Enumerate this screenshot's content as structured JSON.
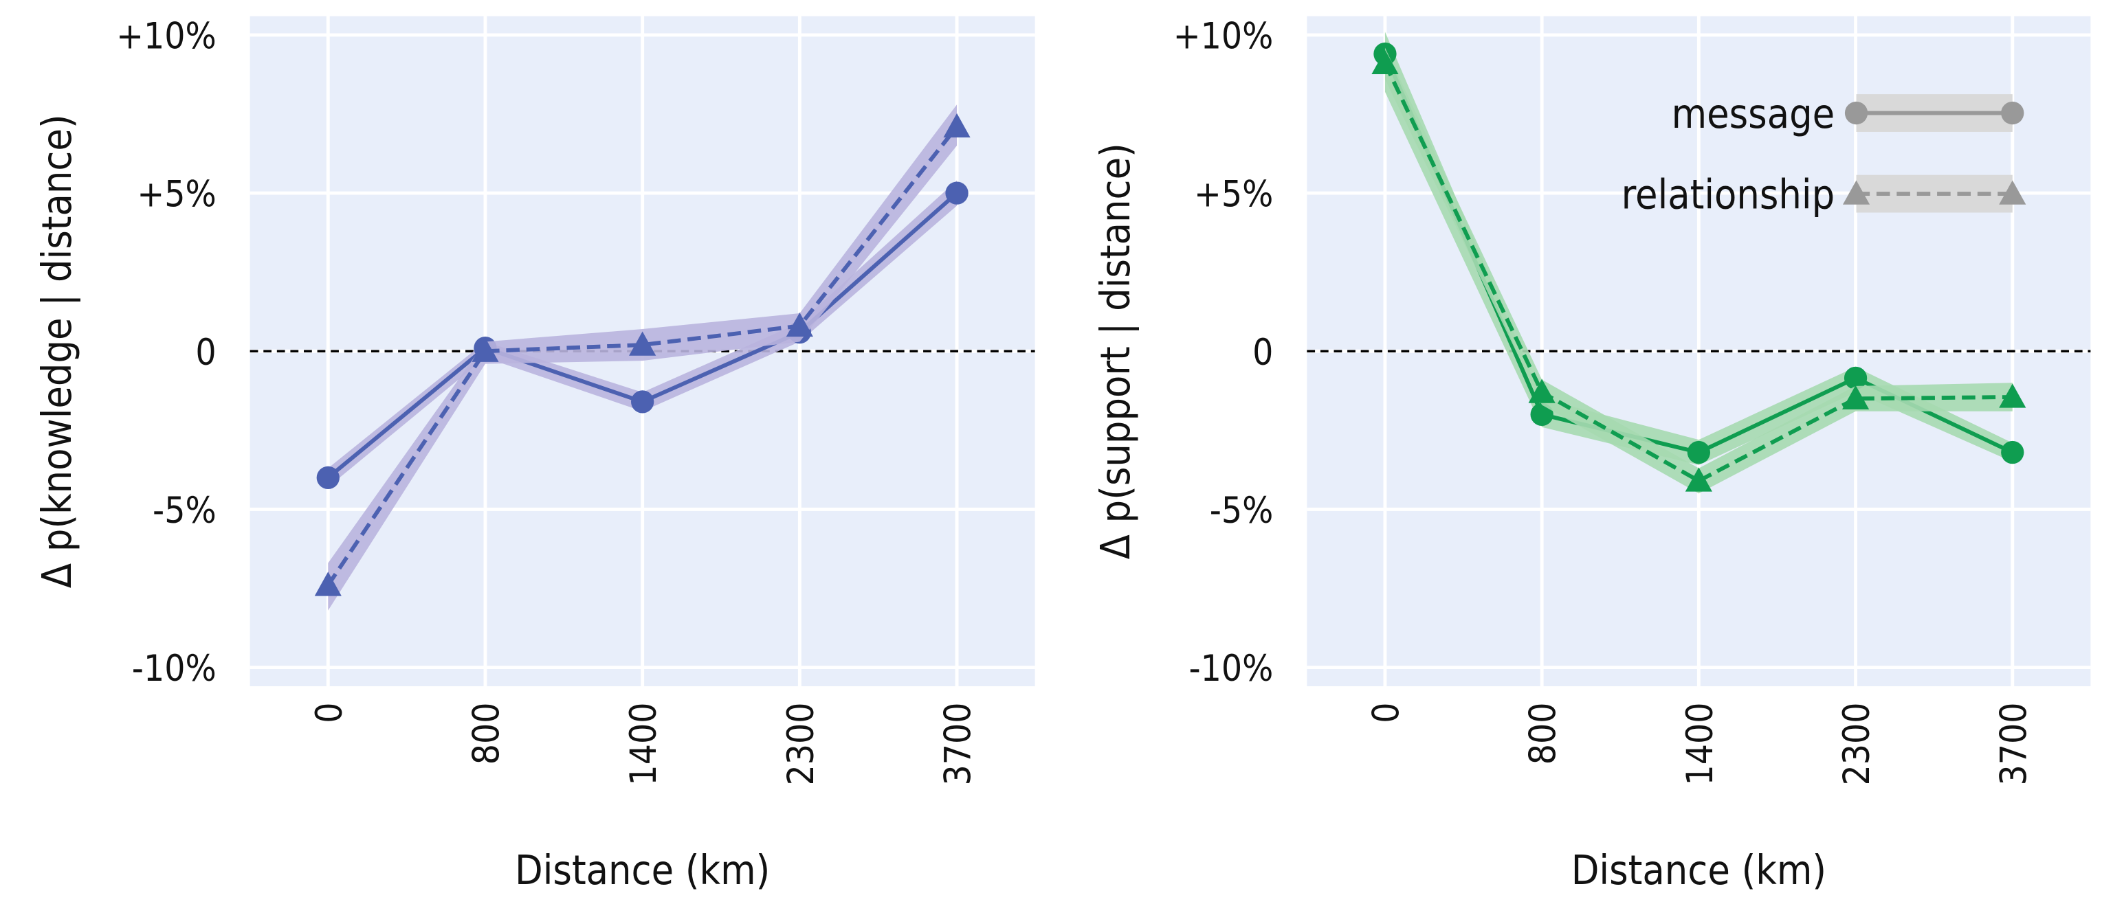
{
  "chart_data": [
    {
      "type": "line",
      "ylabel": "Δ p(knowledge | distance)",
      "xlabel": "Distance (km)",
      "categories": [
        "0",
        "800",
        "1400",
        "2300",
        "3700"
      ],
      "ylim": [
        -11,
        10.5
      ],
      "yticks": [
        10,
        5,
        0,
        -5,
        -10
      ],
      "ytick_labels": [
        "+10%",
        "+5%",
        "0",
        "-5%",
        "-10%"
      ],
      "reference_line": 0,
      "grid": true,
      "line_color": "#4c61b1",
      "band_color": "#b9b4de",
      "series": [
        {
          "name": "message",
          "marker": "circle",
          "style": "solid",
          "values": [
            -4.0,
            0.1,
            -1.6,
            0.6,
            5.0
          ],
          "ci_low": [
            -4.3,
            -0.2,
            -1.9,
            0.3,
            4.6
          ],
          "ci_high": [
            -3.7,
            0.3,
            -1.3,
            0.9,
            5.4
          ]
        },
        {
          "name": "relationship",
          "marker": "triangle",
          "style": "dashed",
          "values": [
            -7.4,
            0.0,
            0.2,
            0.8,
            7.1
          ],
          "ci_low": [
            -8.2,
            -0.4,
            -0.3,
            0.3,
            6.5
          ],
          "ci_high": [
            -6.7,
            0.3,
            0.7,
            1.2,
            7.8
          ]
        }
      ]
    },
    {
      "type": "line",
      "ylabel": "Δ p(support | distance)",
      "xlabel": "Distance (km)",
      "categories": [
        "0",
        "800",
        "1400",
        "2300",
        "3700"
      ],
      "ylim": [
        -11,
        10.5
      ],
      "yticks": [
        10,
        5,
        0,
        -5,
        -10
      ],
      "ytick_labels": [
        "+10%",
        "+5%",
        "0",
        "-5%",
        "-10%"
      ],
      "reference_line": 0,
      "grid": true,
      "line_color": "#0f9d50",
      "band_color": "#a6d9b0",
      "legend": {
        "placement": "top-right",
        "color": "#999999",
        "band_color": "#d9d9d9"
      },
      "series": [
        {
          "name": "message",
          "marker": "circle",
          "style": "solid",
          "values": [
            9.4,
            -2.0,
            -3.2,
            -0.85,
            -3.2
          ],
          "ci_low": [
            8.2,
            -2.4,
            -3.6,
            -1.3,
            -3.5
          ],
          "ci_high": [
            10.1,
            -1.5,
            -2.8,
            -0.5,
            -2.9
          ]
        },
        {
          "name": "relationship",
          "marker": "triangle",
          "style": "dashed",
          "values": [
            9.1,
            -1.3,
            -4.1,
            -1.5,
            -1.45
          ],
          "ci_low": [
            8.6,
            -1.7,
            -4.5,
            -1.9,
            -1.9
          ],
          "ci_high": [
            9.6,
            -0.9,
            -3.7,
            -1.1,
            -1.0
          ]
        }
      ]
    }
  ]
}
